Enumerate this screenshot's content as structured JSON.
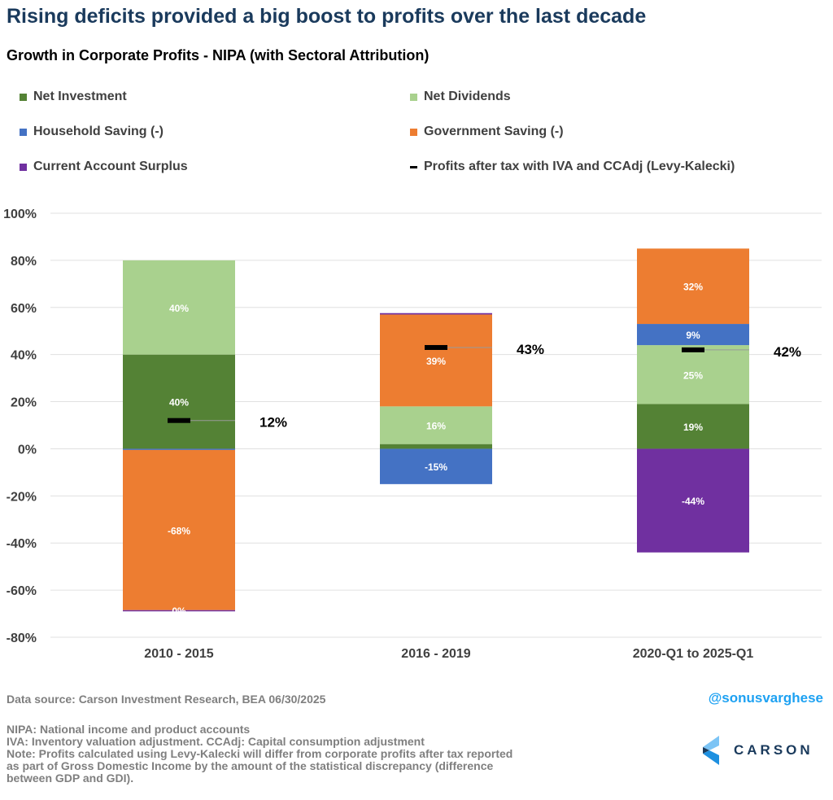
{
  "header": {
    "title": "Rising deficits provided a big boost to profits over the last decade",
    "handle": "@sonusvarghese",
    "logo_text": "CARSON"
  },
  "chart_data": {
    "type": "bar",
    "stacked": true,
    "title": "Growth in Corporate Profits - NIPA (with Sectoral Attribution)",
    "categories": [
      "2010 - 2015",
      "2016 - 2019",
      "2020-Q1 to 2025-Q1"
    ],
    "ylim": [
      -80,
      100
    ],
    "yticks": [
      -80,
      -60,
      -40,
      -20,
      0,
      20,
      40,
      60,
      80,
      100
    ],
    "ytick_format": "percent",
    "grid": true,
    "legend": "top",
    "series": [
      {
        "name": "Net Investment",
        "color": "#548235",
        "values": [
          40,
          2,
          19
        ],
        "labels": [
          "40%",
          null,
          "19%"
        ]
      },
      {
        "name": "Net Dividends",
        "color": "#a9d18e",
        "values": [
          40,
          16,
          25
        ],
        "labels": [
          "40%",
          "16%",
          "25%"
        ]
      },
      {
        "name": "Household Saving (-)",
        "color": "#4472c4",
        "values": [
          -0.5,
          -15,
          9
        ],
        "labels": [
          null,
          "-15%",
          "9%"
        ]
      },
      {
        "name": "Government Saving (-)",
        "color": "#ed7d31",
        "values": [
          -68,
          39,
          32
        ],
        "labels": [
          "-68%",
          "39%",
          "32%"
        ]
      },
      {
        "name": "Current Account Surplus",
        "color": "#7030a0",
        "values": [
          -0.3,
          0.6,
          -44
        ],
        "labels": [
          "0%",
          null,
          "-44%"
        ]
      }
    ],
    "line_series": {
      "name": "Profits after tax with IVA and CCAdj (Levy-Kalecki)",
      "color": "#000000",
      "values": [
        12,
        43,
        42
      ],
      "labels": [
        "12%",
        "43%",
        "42%"
      ]
    }
  },
  "footer": {
    "source": "Data source: Carson Investment Research, BEA   06/30/2025",
    "notes": [
      "NIPA: National income and product accounts",
      "IVA: Inventory valuation adjustment. CCAdj: Capital consumption adjustment",
      "Note: Profits calculated using Levy-Kalecki will differ from corporate profits after tax reported",
      "as part of Gross Domestic Income by the amount of the statistical discrepancy (difference",
      "between GDP and GDI)."
    ]
  }
}
